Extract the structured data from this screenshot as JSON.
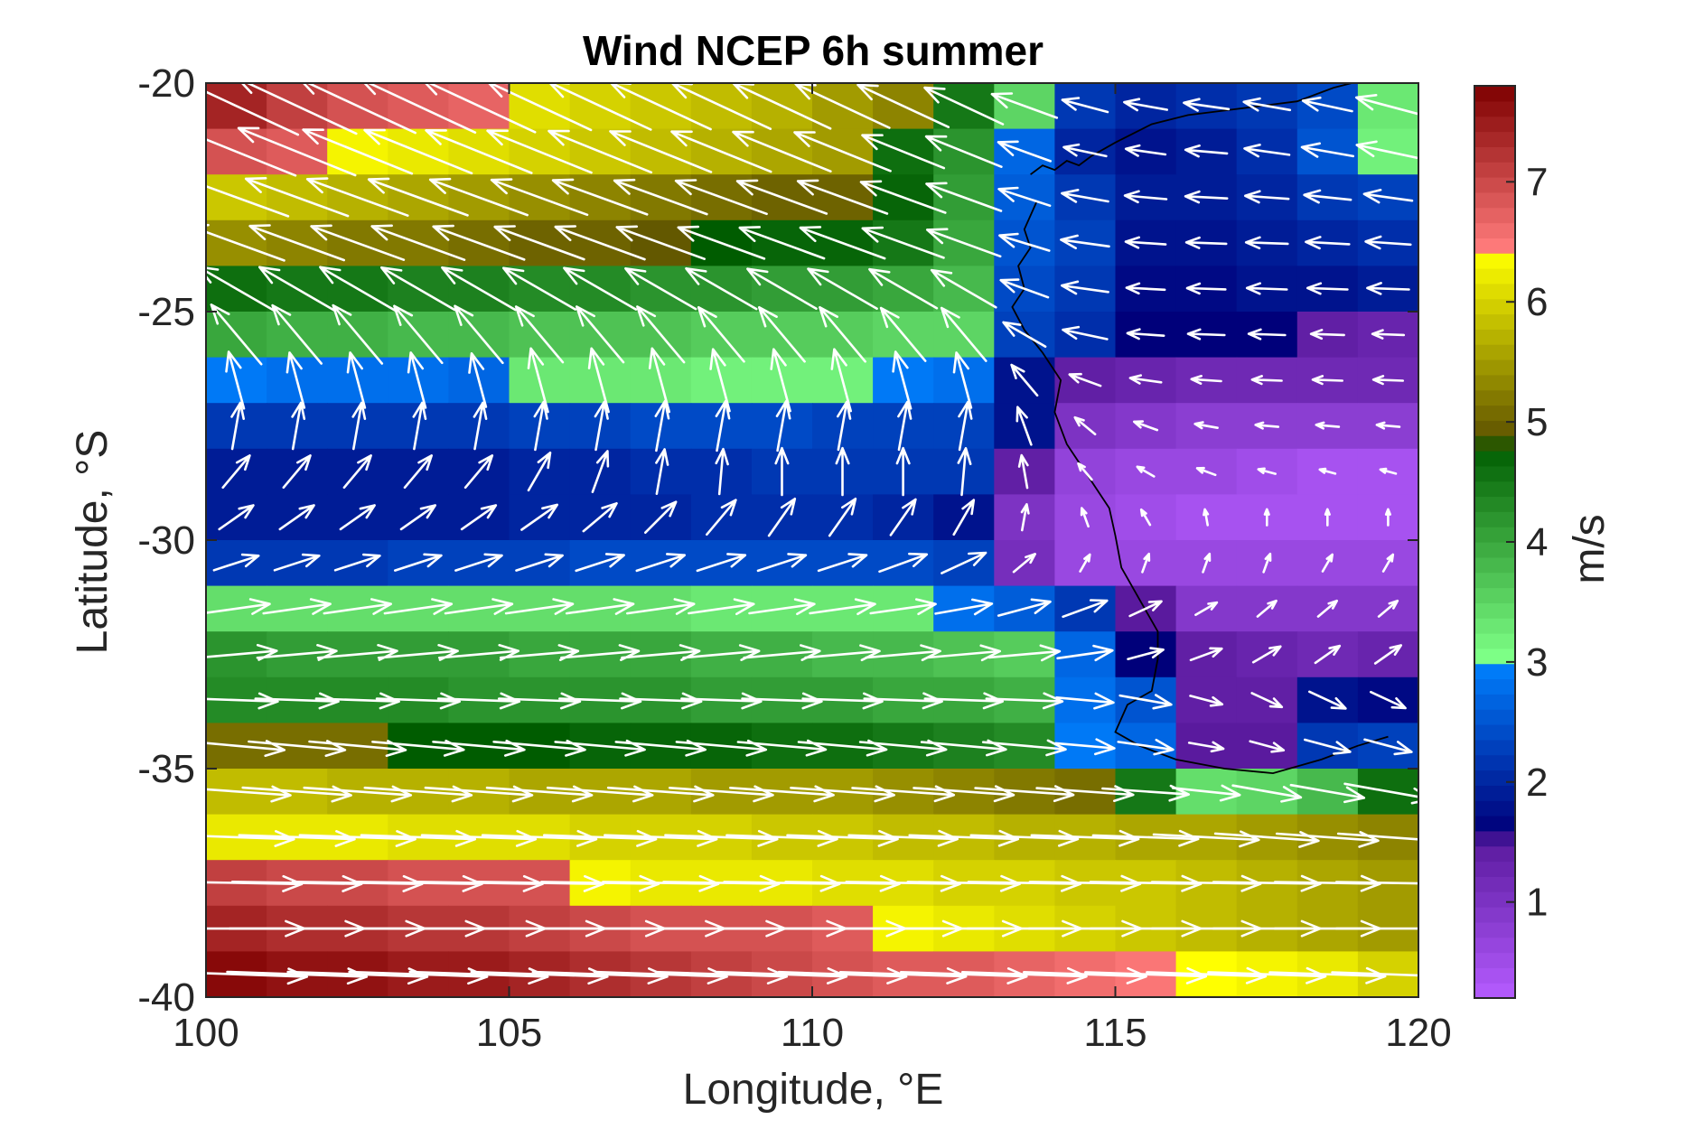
{
  "chart_data": {
    "type": "heatmap",
    "title": "Wind NCEP 6h summer",
    "xlabel": "Longitude, °E",
    "ylabel": "Latitude, °S",
    "xlim": [
      100,
      120
    ],
    "ylim": [
      -40,
      -20
    ],
    "x_ticks": [
      100,
      105,
      110,
      115,
      120
    ],
    "x_tick_labels": [
      "100",
      "105",
      "110",
      "115",
      "120"
    ],
    "y_ticks": [
      -20,
      -25,
      -30,
      -35,
      -40
    ],
    "y_tick_labels": [
      "-20",
      "-25",
      "-30",
      "-35",
      "-40"
    ],
    "colorbar": {
      "label": "m/s",
      "range": [
        0.2,
        7.8
      ],
      "ticks": [
        1,
        2,
        3,
        4,
        5,
        6,
        7
      ],
      "tick_labels": [
        "1",
        "2",
        "3",
        "4",
        "5",
        "6",
        "7"
      ],
      "stops": [
        {
          "value": 0.2,
          "color": "#b55cff"
        },
        {
          "value": 1.5,
          "color": "#5a1a9e"
        },
        {
          "value": 1.6,
          "color": "#00007a"
        },
        {
          "value": 3.0,
          "color": "#0082ff"
        },
        {
          "value": 3.05,
          "color": "#7dff86"
        },
        {
          "value": 4.8,
          "color": "#005c00"
        },
        {
          "value": 4.85,
          "color": "#5e5200"
        },
        {
          "value": 6.4,
          "color": "#ffff00"
        },
        {
          "value": 6.45,
          "color": "#ff7b7b"
        },
        {
          "value": 7.8,
          "color": "#7e0000"
        }
      ]
    },
    "grid": {
      "lon_start": 100,
      "lon_step": 1,
      "ncols": 20,
      "lat_start": -20.5,
      "lat_step": -1,
      "nrows": 20,
      "speed": [
        [
          7.4,
          7.1,
          6.9,
          6.8,
          6.7,
          6.1,
          6.0,
          5.9,
          5.8,
          5.7,
          5.5,
          5.3,
          4.5,
          3.5,
          2.2,
          2.0,
          2.1,
          2.2,
          2.4,
          3.3
        ],
        [
          6.9,
          6.8,
          6.3,
          6.2,
          6.1,
          6.0,
          5.9,
          5.8,
          5.7,
          5.6,
          5.5,
          4.6,
          4.2,
          2.7,
          2.0,
          1.8,
          1.9,
          2.1,
          2.5,
          3.2
        ],
        [
          5.9,
          5.8,
          5.7,
          5.6,
          5.5,
          5.4,
          5.3,
          5.2,
          5.1,
          5.0,
          5.0,
          4.7,
          4.1,
          2.6,
          2.2,
          1.9,
          1.9,
          2.0,
          2.2,
          2.3
        ],
        [
          5.4,
          5.3,
          5.2,
          5.2,
          5.1,
          5.0,
          5.0,
          4.9,
          4.8,
          4.7,
          4.7,
          4.5,
          4.0,
          2.5,
          2.3,
          1.8,
          1.8,
          1.9,
          2.0,
          2.1
        ],
        [
          4.6,
          4.5,
          4.5,
          4.4,
          4.4,
          4.3,
          4.3,
          4.2,
          4.2,
          4.1,
          4.1,
          4.0,
          3.8,
          2.4,
          2.2,
          1.7,
          1.7,
          1.8,
          1.8,
          1.9
        ],
        [
          4.0,
          3.9,
          3.9,
          3.8,
          3.8,
          3.7,
          3.7,
          3.7,
          3.6,
          3.6,
          3.6,
          3.5,
          3.5,
          2.3,
          2.1,
          1.6,
          1.6,
          1.6,
          1.4,
          1.3
        ],
        [
          2.9,
          2.8,
          2.8,
          2.8,
          2.7,
          3.3,
          3.3,
          3.3,
          3.2,
          3.2,
          3.2,
          2.9,
          2.8,
          1.8,
          1.4,
          1.3,
          1.2,
          1.2,
          1.2,
          1.2
        ],
        [
          2.2,
          2.2,
          2.2,
          2.2,
          2.2,
          2.3,
          2.3,
          2.4,
          2.4,
          2.4,
          2.3,
          2.3,
          2.3,
          1.8,
          1.0,
          0.9,
          0.8,
          0.8,
          0.8,
          0.8
        ],
        [
          1.9,
          1.9,
          1.9,
          1.9,
          1.9,
          2.0,
          2.0,
          2.1,
          2.1,
          2.2,
          2.2,
          2.2,
          2.2,
          1.4,
          0.7,
          0.6,
          0.6,
          0.5,
          0.4,
          0.4
        ],
        [
          1.9,
          1.9,
          1.9,
          1.9,
          1.9,
          2.0,
          2.0,
          2.0,
          2.1,
          2.1,
          2.1,
          2.0,
          1.8,
          1.0,
          0.6,
          0.5,
          0.4,
          0.4,
          0.4,
          0.4
        ],
        [
          2.2,
          2.2,
          2.2,
          2.3,
          2.3,
          2.3,
          2.4,
          2.4,
          2.4,
          2.4,
          2.4,
          2.4,
          2.3,
          1.1,
          0.6,
          0.6,
          0.6,
          0.6,
          0.6,
          0.6
        ],
        [
          3.4,
          3.4,
          3.4,
          3.4,
          3.4,
          3.4,
          3.4,
          3.4,
          3.3,
          3.3,
          3.3,
          3.3,
          2.8,
          2.6,
          2.2,
          1.5,
          0.9,
          0.9,
          0.9,
          0.9
        ],
        [
          4.2,
          4.1,
          4.1,
          4.1,
          4.1,
          4.0,
          4.0,
          4.0,
          3.9,
          3.9,
          3.8,
          3.8,
          3.7,
          3.6,
          2.7,
          1.6,
          1.4,
          1.3,
          1.2,
          1.3
        ],
        [
          4.3,
          4.3,
          4.3,
          4.3,
          4.2,
          4.2,
          4.2,
          4.2,
          4.1,
          4.1,
          4.1,
          4.0,
          4.0,
          3.9,
          2.8,
          2.5,
          1.4,
          1.4,
          1.8,
          1.7
        ],
        [
          5.1,
          5.1,
          5.1,
          4.8,
          4.8,
          4.8,
          4.7,
          4.7,
          4.7,
          4.6,
          4.6,
          4.5,
          4.4,
          4.3,
          2.9,
          2.7,
          1.5,
          1.5,
          2.2,
          2.3
        ],
        [
          5.8,
          5.8,
          5.7,
          5.7,
          5.7,
          5.6,
          5.6,
          5.6,
          5.5,
          5.5,
          5.5,
          5.4,
          5.3,
          5.2,
          5.1,
          4.5,
          3.4,
          3.5,
          3.8,
          4.6
        ],
        [
          6.2,
          6.2,
          6.2,
          6.1,
          6.1,
          6.1,
          6.0,
          6.0,
          6.0,
          5.9,
          5.9,
          5.8,
          5.8,
          5.7,
          5.7,
          5.6,
          5.6,
          5.5,
          5.4,
          5.3
        ],
        [
          7.1,
          7.0,
          7.0,
          6.9,
          6.9,
          6.9,
          6.3,
          6.2,
          6.2,
          6.2,
          6.1,
          6.1,
          6.0,
          6.0,
          5.9,
          5.9,
          5.8,
          5.7,
          5.6,
          5.5
        ],
        [
          7.4,
          7.3,
          7.3,
          7.2,
          7.2,
          7.1,
          7.0,
          6.9,
          6.9,
          6.9,
          6.8,
          6.3,
          6.2,
          6.1,
          6.0,
          5.9,
          5.8,
          5.7,
          5.6,
          5.5
        ],
        [
          7.7,
          7.6,
          7.6,
          7.5,
          7.5,
          7.4,
          7.3,
          7.2,
          7.1,
          7.0,
          6.9,
          6.8,
          6.8,
          6.7,
          6.6,
          6.5,
          6.4,
          6.3,
          6.2,
          6.0
        ]
      ],
      "direction_deg": [
        [
          155,
          155,
          155,
          155,
          155,
          155,
          155,
          155,
          155,
          155,
          155,
          155,
          155,
          160,
          165,
          170,
          172,
          170,
          168,
          165
        ],
        [
          158,
          158,
          158,
          158,
          158,
          158,
          158,
          158,
          158,
          158,
          158,
          158,
          158,
          160,
          168,
          172,
          175,
          172,
          170,
          168
        ],
        [
          160,
          160,
          160,
          160,
          160,
          160,
          160,
          160,
          160,
          160,
          160,
          160,
          160,
          162,
          170,
          175,
          177,
          176,
          174,
          172
        ],
        [
          160,
          160,
          160,
          160,
          160,
          160,
          160,
          160,
          160,
          160,
          160,
          160,
          160,
          163,
          172,
          176,
          178,
          178,
          177,
          176
        ],
        [
          150,
          150,
          150,
          150,
          150,
          150,
          150,
          150,
          150,
          150,
          150,
          150,
          150,
          160,
          172,
          177,
          178,
          178,
          178,
          178
        ],
        [
          130,
          130,
          130,
          130,
          130,
          130,
          130,
          130,
          130,
          130,
          130,
          130,
          130,
          150,
          168,
          176,
          178,
          178,
          178,
          178
        ],
        [
          105,
          105,
          105,
          105,
          105,
          105,
          105,
          105,
          105,
          105,
          105,
          105,
          105,
          130,
          160,
          172,
          176,
          178,
          178,
          178
        ],
        [
          80,
          80,
          80,
          80,
          80,
          80,
          80,
          80,
          80,
          80,
          80,
          80,
          80,
          110,
          140,
          160,
          170,
          175,
          175,
          175
        ],
        [
          50,
          50,
          50,
          50,
          50,
          60,
          70,
          80,
          85,
          90,
          90,
          90,
          85,
          100,
          130,
          150,
          160,
          165,
          165,
          165
        ],
        [
          35,
          35,
          35,
          35,
          35,
          35,
          40,
          45,
          50,
          55,
          55,
          55,
          60,
          80,
          110,
          120,
          100,
          90,
          90,
          90
        ],
        [
          18,
          18,
          18,
          18,
          18,
          18,
          18,
          18,
          18,
          18,
          18,
          20,
          25,
          40,
          60,
          70,
          70,
          70,
          60,
          60
        ],
        [
          8,
          8,
          8,
          8,
          8,
          8,
          8,
          8,
          8,
          8,
          8,
          8,
          10,
          15,
          20,
          25,
          30,
          40,
          40,
          40
        ],
        [
          5,
          5,
          5,
          5,
          5,
          5,
          5,
          5,
          5,
          5,
          5,
          5,
          5,
          5,
          8,
          15,
          20,
          30,
          35,
          35
        ],
        [
          -2,
          -2,
          -2,
          -2,
          -2,
          -2,
          -2,
          -2,
          -2,
          -2,
          -2,
          -2,
          -2,
          -2,
          -5,
          -10,
          -15,
          -25,
          -25,
          -25
        ],
        [
          -5,
          -5,
          -5,
          -5,
          -5,
          -5,
          -5,
          -5,
          -5,
          -5,
          -5,
          -5,
          -5,
          -5,
          -5,
          -8,
          -10,
          -15,
          -15,
          -15
        ],
        [
          -4,
          -4,
          -4,
          -4,
          -4,
          -4,
          -4,
          -4,
          -4,
          -4,
          -4,
          -4,
          -4,
          -4,
          -4,
          -4,
          -6,
          -10,
          -10,
          -10
        ],
        [
          -2,
          -2,
          -2,
          -2,
          -2,
          -2,
          -2,
          -2,
          -2,
          -2,
          -2,
          -2,
          -2,
          -2,
          -2,
          -2,
          -3,
          -4,
          -4,
          -4
        ],
        [
          -1,
          -1,
          -1,
          -1,
          -1,
          -1,
          -1,
          -1,
          -1,
          -1,
          -1,
          -1,
          -1,
          -1,
          -1,
          -1,
          -1,
          -1,
          -1,
          -1
        ],
        [
          0,
          0,
          0,
          0,
          0,
          0,
          0,
          0,
          0,
          0,
          0,
          0,
          0,
          0,
          0,
          0,
          0,
          0,
          0,
          0
        ],
        [
          -2,
          -2,
          -2,
          -2,
          -2,
          -2,
          -2,
          -2,
          -2,
          -2,
          -2,
          -2,
          -2,
          -2,
          -2,
          -2,
          -2,
          -2,
          -2,
          -2
        ]
      ]
    },
    "coastline": [
      [
        113.6,
        -22.0
      ],
      [
        113.8,
        -21.8
      ],
      [
        114.0,
        -21.9
      ],
      [
        114.2,
        -21.7
      ],
      [
        114.4,
        -21.8
      ],
      [
        114.6,
        -21.6
      ],
      [
        115.0,
        -21.3
      ],
      [
        115.6,
        -20.9
      ],
      [
        116.2,
        -20.7
      ],
      [
        116.8,
        -20.6
      ],
      [
        117.4,
        -20.5
      ],
      [
        118.0,
        -20.4
      ],
      [
        118.6,
        -20.1
      ],
      [
        119.2,
        -19.9
      ],
      [
        119.7,
        -20.0
      ],
      [
        113.7,
        -22.6
      ],
      [
        113.5,
        -23.2
      ],
      [
        113.6,
        -23.6
      ],
      [
        113.4,
        -24.0
      ],
      [
        113.5,
        -24.5
      ],
      [
        113.3,
        -24.9
      ],
      [
        113.5,
        -25.4
      ],
      [
        113.8,
        -25.9
      ],
      [
        114.1,
        -26.5
      ],
      [
        114.0,
        -27.2
      ],
      [
        114.2,
        -27.9
      ],
      [
        114.6,
        -28.7
      ],
      [
        114.9,
        -29.3
      ],
      [
        115.0,
        -29.9
      ],
      [
        115.1,
        -30.6
      ],
      [
        115.4,
        -31.3
      ],
      [
        115.7,
        -32.0
      ],
      [
        115.7,
        -32.6
      ],
      [
        115.6,
        -33.3
      ],
      [
        115.2,
        -33.6
      ],
      [
        115.0,
        -34.2
      ],
      [
        115.4,
        -34.5
      ],
      [
        116.0,
        -34.8
      ],
      [
        116.8,
        -35.0
      ],
      [
        117.6,
        -35.1
      ],
      [
        118.4,
        -34.8
      ],
      [
        119.0,
        -34.5
      ],
      [
        119.5,
        -34.3
      ]
    ]
  }
}
